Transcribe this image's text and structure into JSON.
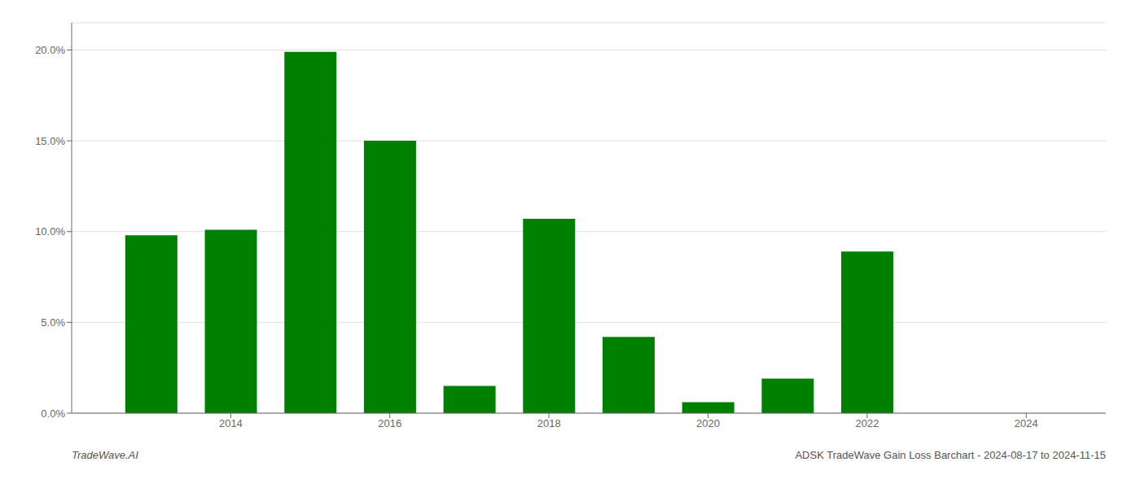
{
  "chart_data": {
    "type": "bar",
    "x": [
      2013,
      2014,
      2015,
      2016,
      2017,
      2018,
      2019,
      2020,
      2021,
      2022
    ],
    "values": [
      0.098,
      0.101,
      0.199,
      0.15,
      0.015,
      0.107,
      0.042,
      0.006,
      0.019,
      0.089
    ],
    "color": "#008000",
    "xlim": [
      2012.0,
      2025.0
    ],
    "xticks": [
      2014,
      2016,
      2018,
      2020,
      2022,
      2024
    ],
    "ylim": [
      0.0,
      0.215
    ],
    "yticks": [
      {
        "value": 0.0,
        "label": "0.0%"
      },
      {
        "value": 0.05,
        "label": "5.0%"
      },
      {
        "value": 0.1,
        "label": "10.0%"
      },
      {
        "value": 0.15,
        "label": "15.0%"
      },
      {
        "value": 0.2,
        "label": "20.0%"
      }
    ],
    "grid": true,
    "annotations": [
      "TradeWave.AI",
      "ADSK TradeWave Gain Loss Barchart - 2024-08-17 to 2024-11-15"
    ]
  }
}
